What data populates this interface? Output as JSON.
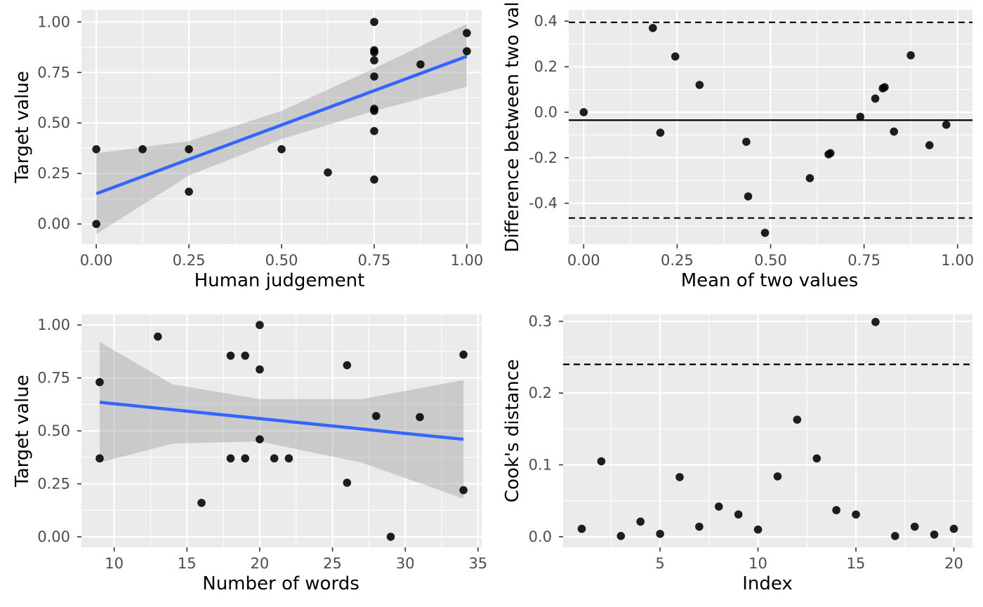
{
  "chart_data": [
    {
      "type": "scatter",
      "xlabel": "Human judgement",
      "ylabel": "Target value",
      "xlim": [
        -0.04,
        1.04
      ],
      "ylim": [
        -0.1,
        1.06
      ],
      "xticks": [
        0,
        0.25,
        0.5,
        0.75,
        1
      ],
      "xtick_labels": [
        "0.00",
        "0.25",
        "0.50",
        "0.75",
        "1.00"
      ],
      "yticks": [
        0,
        0.25,
        0.5,
        0.75,
        1
      ],
      "ytick_labels": [
        "0.00",
        "0.25",
        "0.50",
        "0.75",
        "1.00"
      ],
      "points": [
        [
          0,
          0.37
        ],
        [
          0,
          0.0
        ],
        [
          0.125,
          0.37
        ],
        [
          0.25,
          0.37
        ],
        [
          0.25,
          0.16
        ],
        [
          0.5,
          0.37
        ],
        [
          0.625,
          0.255
        ],
        [
          0.75,
          1.0
        ],
        [
          0.75,
          0.86
        ],
        [
          0.75,
          0.85
        ],
        [
          0.75,
          0.81
        ],
        [
          0.75,
          0.73
        ],
        [
          0.75,
          0.57
        ],
        [
          0.75,
          0.56
        ],
        [
          0.75,
          0.46
        ],
        [
          0.75,
          0.22
        ],
        [
          0.875,
          0.79
        ],
        [
          1.0,
          0.945
        ],
        [
          1.0,
          0.855
        ]
      ],
      "fit": {
        "x": [
          0,
          1
        ],
        "y": [
          0.15,
          0.83
        ],
        "color": "#3366ff"
      },
      "ci_band": {
        "x": [
          0,
          0.25,
          0.5,
          0.75,
          1
        ],
        "lower": [
          -0.05,
          0.24,
          0.42,
          0.56,
          0.68
        ],
        "upper": [
          0.35,
          0.41,
          0.56,
          0.77,
          0.99
        ]
      },
      "hlines": [],
      "grid": true
    },
    {
      "type": "scatter",
      "xlabel": "Mean of two values",
      "ylabel": "Difference between two val",
      "xlim": [
        -0.04,
        1.04
      ],
      "ylim": [
        -0.58,
        0.45
      ],
      "xticks": [
        0,
        0.25,
        0.5,
        0.75,
        1
      ],
      "xtick_labels": [
        "0.00",
        "0.25",
        "0.50",
        "0.75",
        "1.00"
      ],
      "yticks": [
        -0.4,
        -0.2,
        0,
        0.2,
        0.4
      ],
      "ytick_labels": [
        "-0.4",
        "-0.2",
        "0.0",
        "0.2",
        "0.4"
      ],
      "points": [
        [
          0,
          0.0
        ],
        [
          0.185,
          0.37
        ],
        [
          0.205,
          -0.09
        ],
        [
          0.245,
          0.245
        ],
        [
          0.31,
          0.12
        ],
        [
          0.435,
          -0.13
        ],
        [
          0.44,
          -0.37
        ],
        [
          0.485,
          -0.53
        ],
        [
          0.605,
          -0.29
        ],
        [
          0.655,
          -0.185
        ],
        [
          0.66,
          -0.18
        ],
        [
          0.74,
          -0.02
        ],
        [
          0.78,
          0.06
        ],
        [
          0.8,
          0.105
        ],
        [
          0.805,
          0.11
        ],
        [
          0.83,
          -0.085
        ],
        [
          0.875,
          0.25
        ],
        [
          0.925,
          -0.145
        ],
        [
          0.97,
          -0.055
        ]
      ],
      "fit": null,
      "ci_band": null,
      "hlines": [
        {
          "y": 0.395,
          "style": "dashed"
        },
        {
          "y": -0.035,
          "style": "solid"
        },
        {
          "y": -0.465,
          "style": "dashed"
        }
      ],
      "grid": true
    },
    {
      "type": "scatter",
      "xlabel": "Number of words",
      "ylabel": "Target value",
      "xlim": [
        7.75,
        35.25
      ],
      "ylim": [
        -0.05,
        1.05
      ],
      "xticks": [
        10,
        15,
        20,
        25,
        30,
        35
      ],
      "xtick_labels": [
        "10",
        "15",
        "20",
        "25",
        "30",
        "35"
      ],
      "yticks": [
        0,
        0.25,
        0.5,
        0.75,
        1
      ],
      "ytick_labels": [
        "0.00",
        "0.25",
        "0.50",
        "0.75",
        "1.00"
      ],
      "points": [
        [
          9,
          0.73
        ],
        [
          9,
          0.37
        ],
        [
          13,
          0.945
        ],
        [
          16,
          0.16
        ],
        [
          18,
          0.855
        ],
        [
          18,
          0.37
        ],
        [
          19,
          0.855
        ],
        [
          19,
          0.37
        ],
        [
          20,
          1.0
        ],
        [
          20,
          0.79
        ],
        [
          20,
          0.46
        ],
        [
          21,
          0.37
        ],
        [
          22,
          0.37
        ],
        [
          26,
          0.81
        ],
        [
          26,
          0.255
        ],
        [
          28,
          0.57
        ],
        [
          29,
          0.0
        ],
        [
          31,
          0.565
        ],
        [
          34,
          0.86
        ],
        [
          34,
          0.22
        ]
      ],
      "fit": {
        "x": [
          9,
          34
        ],
        "y": [
          0.635,
          0.46
        ],
        "color": "#3366ff"
      },
      "ci_band": {
        "x": [
          9,
          14,
          20,
          27,
          34
        ],
        "lower": [
          0.35,
          0.44,
          0.45,
          0.35,
          0.18
        ],
        "upper": [
          0.92,
          0.72,
          0.65,
          0.65,
          0.74
        ]
      },
      "hlines": [],
      "grid": true
    },
    {
      "type": "scatter",
      "xlabel": "Index",
      "ylabel": "Cook's distance",
      "xlim": [
        0.05,
        20.95
      ],
      "ylim": [
        -0.0148,
        0.3096
      ],
      "xticks": [
        5,
        10,
        15,
        20
      ],
      "xtick_labels": [
        "5",
        "10",
        "15",
        "20"
      ],
      "yticks": [
        0,
        0.1,
        0.2,
        0.3
      ],
      "ytick_labels": [
        "0.0",
        "0.1",
        "0.2",
        "0.3"
      ],
      "points": [
        [
          1,
          0.011
        ],
        [
          2,
          0.105
        ],
        [
          3,
          0.001
        ],
        [
          4,
          0.021
        ],
        [
          5,
          0.004
        ],
        [
          6,
          0.083
        ],
        [
          7,
          0.014
        ],
        [
          8,
          0.042
        ],
        [
          9,
          0.031
        ],
        [
          10,
          0.01
        ],
        [
          11,
          0.084
        ],
        [
          12,
          0.163
        ],
        [
          13,
          0.109
        ],
        [
          14,
          0.037
        ],
        [
          15,
          0.031
        ],
        [
          16,
          0.299
        ],
        [
          17,
          0.001
        ],
        [
          18,
          0.014
        ],
        [
          19,
          0.003
        ],
        [
          20,
          0.011
        ]
      ],
      "fit": null,
      "ci_band": null,
      "hlines": [
        {
          "y": 0.24,
          "style": "dashed"
        }
      ],
      "grid": true
    }
  ]
}
